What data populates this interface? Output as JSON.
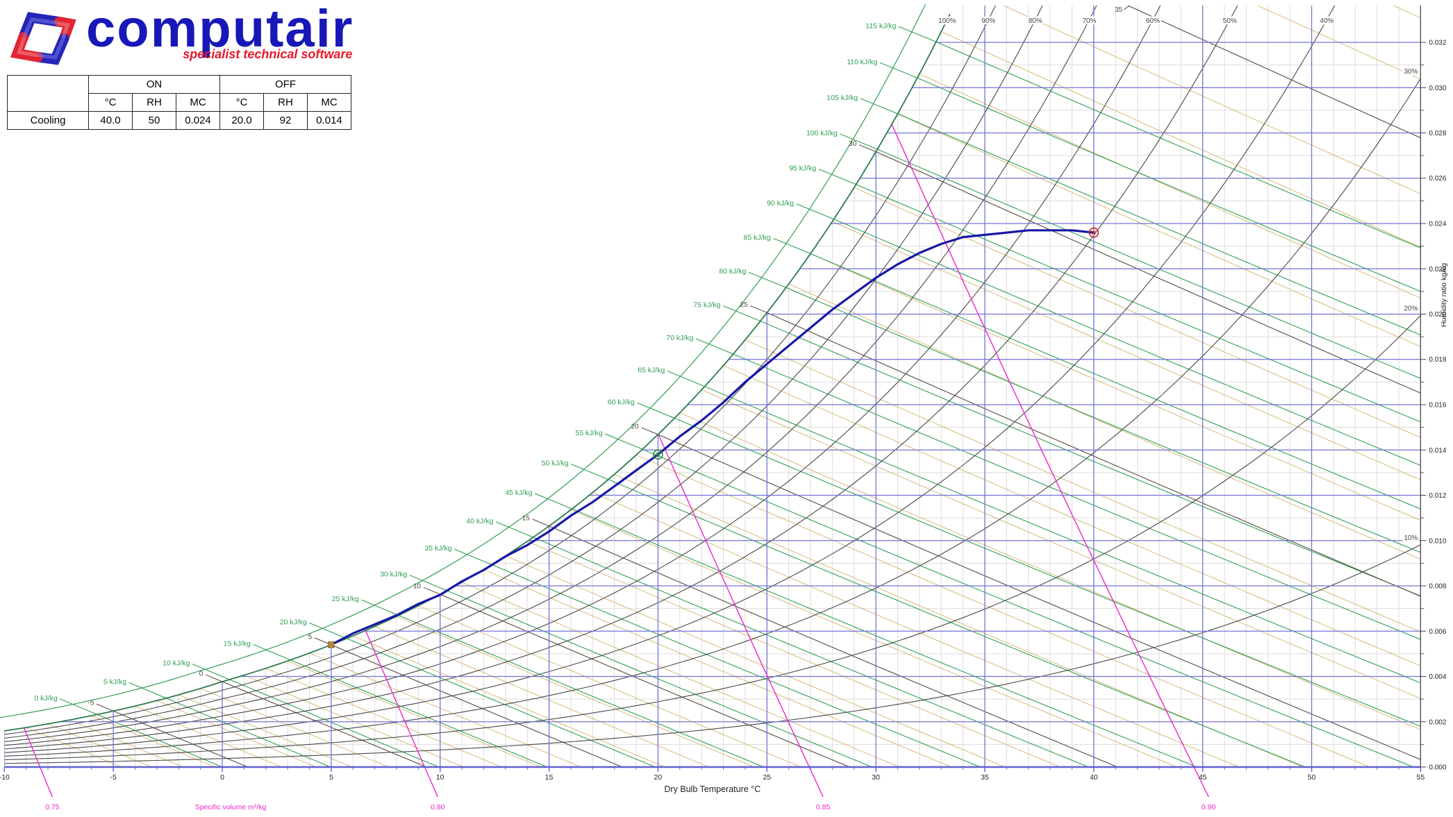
{
  "logo": {
    "brand": "computair",
    "tagline": "specialist technical software",
    "brand_color": "#1818b8",
    "tagline_color": "#e8192c",
    "mark_red": "#e02535",
    "mark_blue": "#2525b8"
  },
  "table": {
    "group_headers": [
      "ON",
      "OFF"
    ],
    "sub_headers": [
      "°C",
      "RH",
      "MC"
    ],
    "rows": [
      {
        "label": "Cooling",
        "values": [
          "40.0",
          "50",
          "0.024",
          "20.0",
          "92",
          "0.014"
        ]
      }
    ]
  },
  "chart_data": {
    "type": "line",
    "chart_kind": "psychrometric",
    "xlabel": "Dry Bulb Temperature °C",
    "ylabel": "Humidity ratio kg/kg",
    "xlim": [
      -10,
      55
    ],
    "ylim": [
      0,
      0.032
    ],
    "x_tick_step": 5,
    "x_minor_step": 1,
    "y_tick_step": 0.002,
    "y_minor_step": 0.001,
    "y_tick_labels": [
      "0.000",
      "0.002",
      "0.004",
      "0.006",
      "0.008",
      "0.010",
      "0.012",
      "0.014",
      "0.016",
      "0.018",
      "0.020",
      "0.022",
      "0.024",
      "0.026",
      "0.028",
      "0.030",
      "0.032"
    ],
    "enthalpy_lines_kJ_per_kg": {
      "min": 0,
      "max": 115,
      "step": 5,
      "label_suffix": " kJ/kg"
    },
    "wet_bulb_lines_C": {
      "major_min": -5,
      "major_max": 35,
      "major_step": 5,
      "minor_step": 1,
      "minor_min": -9,
      "minor_max": 38
    },
    "rh_curves_pct": [
      10,
      20,
      30,
      40,
      50,
      60,
      70,
      80,
      90,
      100
    ],
    "rh_labels_top_pct": [
      100,
      90,
      80,
      70,
      60,
      50,
      40
    ],
    "rh_labels_right_pct": [
      30,
      20,
      10
    ],
    "specific_volume_m3_per_kg": [
      "0.75",
      "0.80",
      "0.85",
      "0.90"
    ],
    "specific_volume_axis_label": "Specific volume m³/kg",
    "process": {
      "name": "Cooling",
      "on_point": {
        "dry_bulb_c": 40.0,
        "rh_pct": 50,
        "moisture_content": 0.024
      },
      "off_point": {
        "dry_bulb_c": 20.0,
        "rh_pct": 92,
        "moisture_content": 0.014
      },
      "adp_point": {
        "dry_bulb_c": 5.0,
        "moisture_content": 0.0054
      },
      "curve_t_w": [
        [
          5,
          0.0054
        ],
        [
          6,
          0.0059
        ],
        [
          7,
          0.0063
        ],
        [
          8,
          0.0067
        ],
        [
          9,
          0.0072
        ],
        [
          10,
          0.0076
        ],
        [
          11,
          0.0082
        ],
        [
          12,
          0.0087
        ],
        [
          13,
          0.0093
        ],
        [
          14,
          0.0098
        ],
        [
          15,
          0.0104
        ],
        [
          16,
          0.0111
        ],
        [
          17,
          0.0117
        ],
        [
          18,
          0.0124
        ],
        [
          19,
          0.0131
        ],
        [
          20,
          0.0138
        ],
        [
          21,
          0.0146
        ],
        [
          22,
          0.0153
        ],
        [
          23,
          0.0161
        ],
        [
          24,
          0.017
        ],
        [
          25,
          0.0178
        ],
        [
          26,
          0.0186
        ],
        [
          27,
          0.0194
        ],
        [
          28,
          0.0202
        ],
        [
          29,
          0.0209
        ],
        [
          30,
          0.0216
        ],
        [
          31,
          0.0222
        ],
        [
          32,
          0.0227
        ],
        [
          33,
          0.0231
        ],
        [
          34,
          0.0234
        ],
        [
          35,
          0.0235
        ],
        [
          36,
          0.0236
        ],
        [
          37,
          0.0237
        ],
        [
          38,
          0.0237
        ],
        [
          39,
          0.0237
        ],
        [
          40,
          0.0236
        ]
      ]
    },
    "colors": {
      "grid_major": "#7373d6",
      "grid_minor": "#dcdcdc",
      "axis_blue": "#6060cf",
      "axis_black": "#444444",
      "enthalpy": "#2f9e52",
      "wet_bulb_major": "#55473a",
      "wet_bulb_minor": "#d7b878",
      "rh_curve": "#474747",
      "saturation": "#2c7a4c",
      "volume": "#ee25cd",
      "process": "#1717a8",
      "marker_on": "#cc2222",
      "marker_off": "#2c8c2c",
      "marker_adp_fill": "#efa93f",
      "marker_adp_stroke": "#7a5a20",
      "text": "#222222"
    }
  }
}
